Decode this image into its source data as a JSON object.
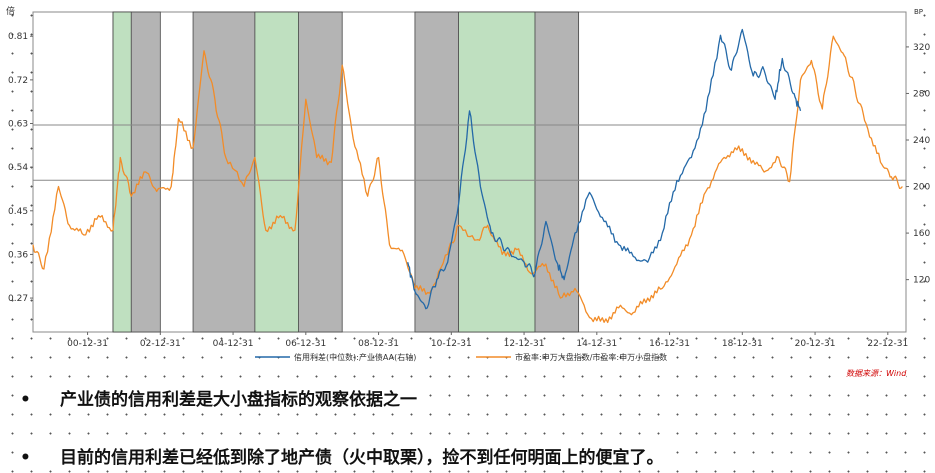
{
  "chart_data": {
    "type": "line",
    "left_axis": {
      "unit": "倍",
      "ticks": [
        "0.27",
        "0.36",
        "0.45",
        "0.54",
        "0.63",
        "0.72",
        "0.81"
      ],
      "ylim": [
        0.2,
        0.86
      ]
    },
    "right_axis": {
      "unit": "BP",
      "ticks": [
        "120",
        "160",
        "200",
        "240",
        "280",
        "320"
      ],
      "ylim": [
        75,
        350
      ]
    },
    "x_ticks": [
      "00-12-31",
      "02-12-31",
      "04-12-31",
      "06-12-31",
      "08-12-31",
      "10-12-31",
      "12-12-31",
      "14-12-31",
      "16-12-31",
      "18-12-31",
      "20-12-31",
      "22-12-31"
    ],
    "xlim": [
      1999.5,
      2023.5
    ],
    "hlines": [
      0.627,
      0.513
    ],
    "shaded_periods": [
      {
        "color": "gray",
        "start": 2001.7,
        "end": 2003.0
      },
      {
        "color": "green",
        "start": 2001.7,
        "end": 2002.2
      },
      {
        "color": "gray",
        "start": 2003.9,
        "end": 2008.0
      },
      {
        "color": "green",
        "start": 2005.6,
        "end": 2006.8
      },
      {
        "color": "gray",
        "start": 2010.0,
        "end": 2014.5
      },
      {
        "color": "green",
        "start": 2011.2,
        "end": 2013.3
      }
    ],
    "series": [
      {
        "name": "市盈率:申万大盘指数/市盈率:申万小盘指数",
        "color": "#f28c28",
        "axis": "left",
        "points": [
          [
            1999.5,
            0.38
          ],
          [
            1999.8,
            0.33
          ],
          [
            2000.2,
            0.5
          ],
          [
            2000.5,
            0.42
          ],
          [
            2000.9,
            0.4
          ],
          [
            2001.3,
            0.44
          ],
          [
            2001.7,
            0.41
          ],
          [
            2001.9,
            0.56
          ],
          [
            2002.2,
            0.48
          ],
          [
            2002.6,
            0.53
          ],
          [
            2002.9,
            0.49
          ],
          [
            2003.3,
            0.5
          ],
          [
            2003.5,
            0.64
          ],
          [
            2003.9,
            0.58
          ],
          [
            2004.2,
            0.78
          ],
          [
            2004.5,
            0.68
          ],
          [
            2004.8,
            0.56
          ],
          [
            2005.3,
            0.5
          ],
          [
            2005.6,
            0.56
          ],
          [
            2005.9,
            0.41
          ],
          [
            2006.3,
            0.44
          ],
          [
            2006.7,
            0.41
          ],
          [
            2007.0,
            0.68
          ],
          [
            2007.3,
            0.56
          ],
          [
            2007.7,
            0.55
          ],
          [
            2008.0,
            0.75
          ],
          [
            2008.3,
            0.6
          ],
          [
            2008.7,
            0.48
          ],
          [
            2009.0,
            0.56
          ],
          [
            2009.3,
            0.38
          ],
          [
            2009.7,
            0.36
          ],
          [
            2010.0,
            0.29
          ],
          [
            2010.4,
            0.28
          ],
          [
            2010.9,
            0.36
          ],
          [
            2011.2,
            0.42
          ],
          [
            2011.7,
            0.39
          ],
          [
            2012.0,
            0.42
          ],
          [
            2012.4,
            0.36
          ],
          [
            2012.8,
            0.37
          ],
          [
            2013.2,
            0.32
          ],
          [
            2013.6,
            0.34
          ],
          [
            2014.0,
            0.27
          ],
          [
            2014.4,
            0.29
          ],
          [
            2014.8,
            0.23
          ],
          [
            2015.2,
            0.22
          ],
          [
            2015.6,
            0.25
          ],
          [
            2016.0,
            0.24
          ],
          [
            2016.4,
            0.27
          ],
          [
            2016.8,
            0.29
          ],
          [
            2017.2,
            0.34
          ],
          [
            2017.6,
            0.4
          ],
          [
            2018.0,
            0.49
          ],
          [
            2018.4,
            0.55
          ],
          [
            2018.8,
            0.58
          ],
          [
            2019.2,
            0.56
          ],
          [
            2019.6,
            0.53
          ],
          [
            2020.0,
            0.56
          ],
          [
            2020.3,
            0.51
          ],
          [
            2020.6,
            0.72
          ],
          [
            2020.9,
            0.76
          ],
          [
            2021.2,
            0.66
          ],
          [
            2021.5,
            0.81
          ],
          [
            2021.8,
            0.77
          ],
          [
            2022.1,
            0.7
          ],
          [
            2022.4,
            0.63
          ],
          [
            2022.8,
            0.55
          ],
          [
            2023.1,
            0.52
          ],
          [
            2023.4,
            0.5
          ]
        ]
      },
      {
        "name": "信用利差(中位数):产业债AA(右轴)",
        "color": "#2469a8",
        "axis": "right",
        "points": [
          [
            2009.8,
            135
          ],
          [
            2010.0,
            110
          ],
          [
            2010.3,
            95
          ],
          [
            2010.6,
            120
          ],
          [
            2010.9,
            135
          ],
          [
            2011.2,
            185
          ],
          [
            2011.5,
            265
          ],
          [
            2011.8,
            200
          ],
          [
            2012.1,
            160
          ],
          [
            2012.4,
            150
          ],
          [
            2012.7,
            140
          ],
          [
            2013.0,
            135
          ],
          [
            2013.3,
            125
          ],
          [
            2013.6,
            170
          ],
          [
            2013.9,
            135
          ],
          [
            2014.1,
            120
          ],
          [
            2014.4,
            160
          ],
          [
            2014.8,
            195
          ],
          [
            2015.2,
            170
          ],
          [
            2015.6,
            150
          ],
          [
            2016.0,
            140
          ],
          [
            2016.4,
            135
          ],
          [
            2016.8,
            160
          ],
          [
            2017.2,
            205
          ],
          [
            2017.6,
            225
          ],
          [
            2018.0,
            265
          ],
          [
            2018.4,
            330
          ],
          [
            2018.7,
            300
          ],
          [
            2019.0,
            335
          ],
          [
            2019.3,
            295
          ],
          [
            2019.6,
            300
          ],
          [
            2019.9,
            275
          ],
          [
            2020.1,
            310
          ],
          [
            2020.4,
            280
          ],
          [
            2020.6,
            265
          ]
        ]
      }
    ],
    "legend": [
      {
        "label": "信用利差(中位数):产业债AA(右轴)",
        "color": "#2469a8"
      },
      {
        "label": "市盈率:申万大盘指数/市盈率:申万小盘指数",
        "color": "#f28c28"
      }
    ]
  },
  "source": "数据来源：Wind",
  "bullets": [
    "产业债的信用利差是大小盘指标的观察依据之一",
    "目前的信用利差已经低到除了地产债（火中取栗），捡不到任何明面上的便宜了。"
  ]
}
